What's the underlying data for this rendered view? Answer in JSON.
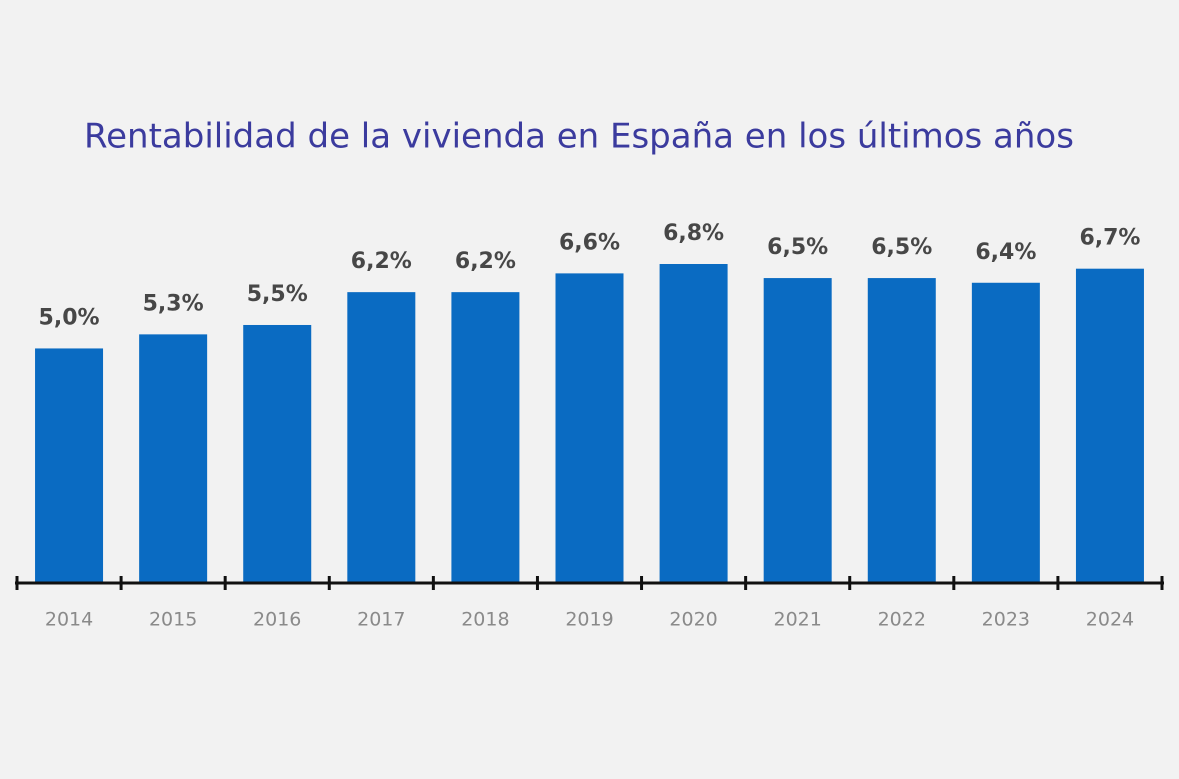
{
  "chart_data": {
    "type": "bar",
    "title": "Rentabilidad de la vivienda en España en los últimos años",
    "categories": [
      "2014",
      "2015",
      "2016",
      "2017",
      "2018",
      "2019",
      "2020",
      "2021",
      "2022",
      "2023",
      "2024"
    ],
    "values": [
      5.0,
      5.3,
      5.5,
      6.2,
      6.2,
      6.6,
      6.8,
      6.5,
      6.5,
      6.4,
      6.7
    ],
    "value_labels": [
      "5,0%",
      "5,3%",
      "5,5%",
      "6,2%",
      "6,2%",
      "6,6%",
      "6,8%",
      "6,5%",
      "6,5%",
      "6,4%",
      "6,7%"
    ],
    "color": "#0a6bc2"
  }
}
